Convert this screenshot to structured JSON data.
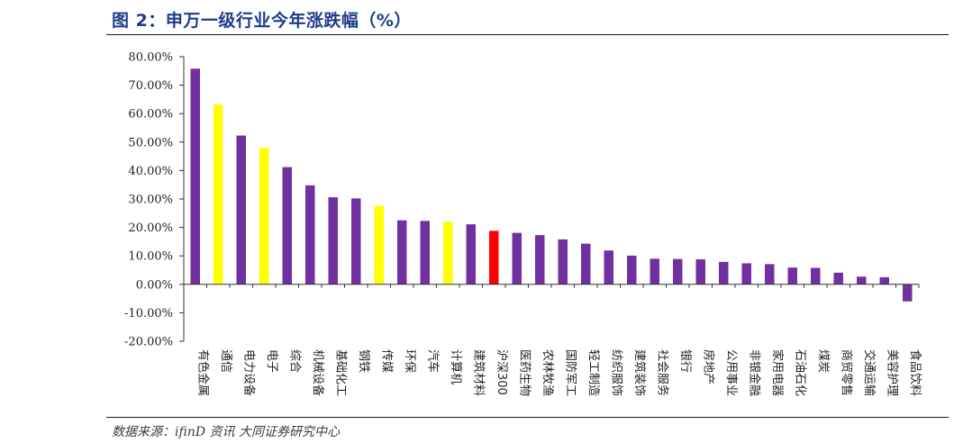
{
  "title": "图 2：申万一级行业今年涨跌幅（%）",
  "source": "数据来源：ifinD 资讯  大同证券研究中心",
  "colors": {
    "default": "#7030a0",
    "highlight": "#ffff00",
    "benchmark": "#ff0000"
  },
  "chart_data": {
    "type": "bar",
    "title": "图 2：申万一级行业今年涨跌幅（%）",
    "ylim": [
      -20,
      80
    ],
    "yticks": [
      "80.00%",
      "70.00%",
      "60.00%",
      "50.00%",
      "40.00%",
      "30.00%",
      "20.00%",
      "10.00%",
      "0.00%",
      "-10.00%",
      "-20.00%"
    ],
    "grid": false,
    "legend": "none",
    "categories": [
      "有色金属",
      "通信",
      "电力设备",
      "电子",
      "综合",
      "机械设备",
      "基础化工",
      "钢铁",
      "传媒",
      "环保",
      "汽车",
      "计算机",
      "建筑材料",
      "沪深300",
      "医药生物",
      "农林牧渔",
      "国防军工",
      "轻工制造",
      "纺织服饰",
      "建筑装饰",
      "社会服务",
      "银行",
      "房地产",
      "公用事业",
      "非银金融",
      "家用电器",
      "石油石化",
      "煤炭",
      "商贸零售",
      "交通运输",
      "美容护理",
      "食品饮料"
    ],
    "values": [
      75.8,
      63.2,
      52.3,
      47.9,
      41.2,
      34.8,
      30.6,
      30.2,
      27.6,
      22.5,
      22.3,
      21.9,
      21.1,
      18.8,
      18.1,
      17.3,
      15.8,
      14.3,
      11.9,
      10.1,
      9.0,
      8.9,
      8.8,
      7.9,
      7.4,
      7.1,
      5.9,
      5.8,
      4.1,
      2.7,
      2.5,
      -6.0
    ],
    "highlight": [
      "default",
      "highlight",
      "default",
      "highlight",
      "default",
      "default",
      "default",
      "default",
      "highlight",
      "default",
      "default",
      "highlight",
      "default",
      "benchmark",
      "default",
      "default",
      "default",
      "default",
      "default",
      "default",
      "default",
      "default",
      "default",
      "default",
      "default",
      "default",
      "default",
      "default",
      "default",
      "default",
      "default",
      "default"
    ]
  }
}
